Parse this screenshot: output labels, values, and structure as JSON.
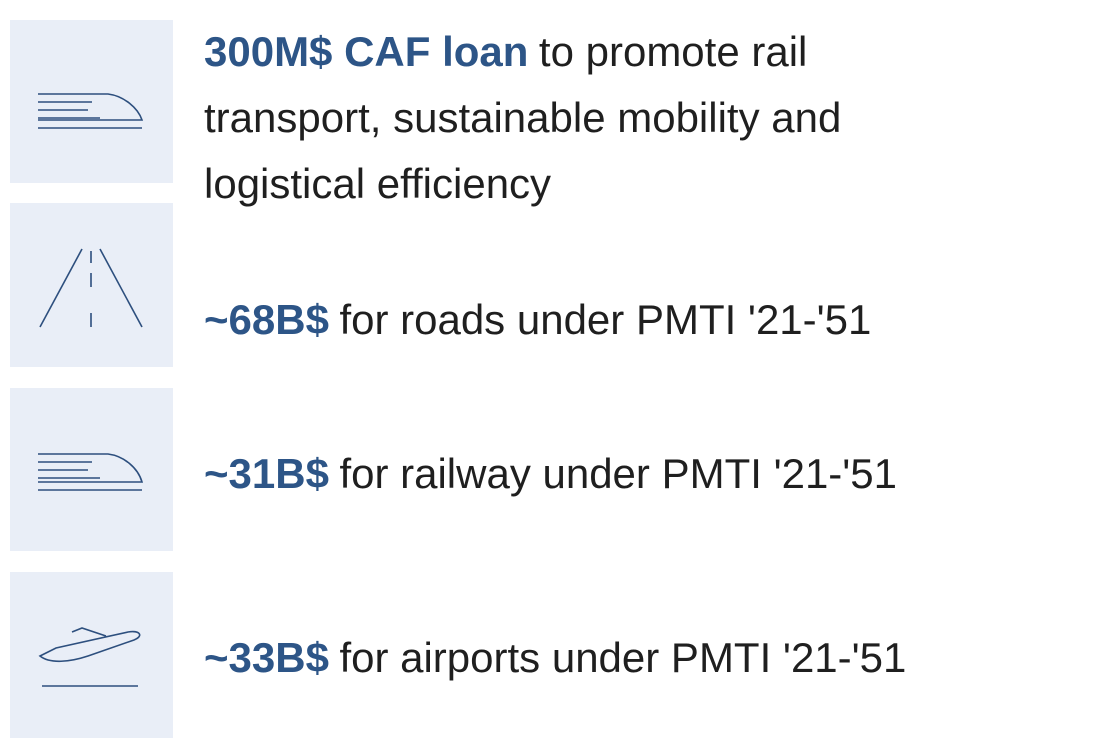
{
  "items": [
    {
      "highlight": "300M$ CAF loan",
      "text": "to promote rail transport, sustainable mobility and logistical efficiency"
    },
    {
      "highlight": "~68B$",
      "text": "for roads under PMTI '21-'51"
    },
    {
      "highlight": "~31B$",
      "text": "for railway under PMTI '21-'51"
    },
    {
      "highlight": "~33B$",
      "text": "for airports under PMTI '21-'51"
    }
  ]
}
